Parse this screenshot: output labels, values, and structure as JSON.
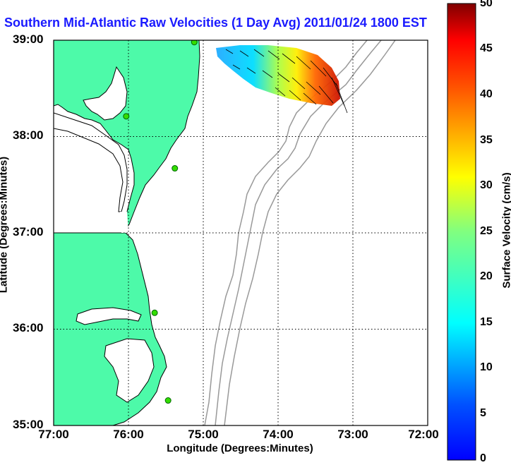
{
  "title": "Southern Mid-Atlantic Raw Velocities (1 Day Avg) 2011/01/24 1800 EST",
  "x_axis": {
    "label": "Longitude (Degrees:Minutes)",
    "ticks": [
      "77:00",
      "76:00",
      "75:00",
      "74:00",
      "73:00",
      "72:00"
    ]
  },
  "y_axis": {
    "label": "Latitude (Degrees:Minutes)",
    "ticks": [
      "39:00",
      "38:00",
      "37:00",
      "36:00",
      "35:00"
    ]
  },
  "colorbar": {
    "label": "Surface Velocity (cm/s)",
    "ticks": [
      "50",
      "45",
      "40",
      "35",
      "30",
      "25",
      "20",
      "15",
      "10",
      "5",
      "0"
    ],
    "min": 0,
    "max": 50,
    "colormap": "jet"
  },
  "colors": {
    "land": "#4dfaa9",
    "water": "#ffffff",
    "coastline": "#000000",
    "bathymetry": "#999999",
    "grid": "#000000",
    "station": "#33dd00",
    "title": "#1a1aff"
  },
  "map_extent": {
    "lon": [
      -77,
      -72
    ],
    "lat": [
      35,
      39
    ]
  },
  "stations": [
    {
      "lon": -75.12,
      "lat": 38.98
    },
    {
      "lon": -76.03,
      "lat": 38.21
    },
    {
      "lon": -75.38,
      "lat": 37.67
    },
    {
      "lon": -75.65,
      "lat": 36.17
    },
    {
      "lon": -75.47,
      "lat": 35.26
    }
  ]
}
